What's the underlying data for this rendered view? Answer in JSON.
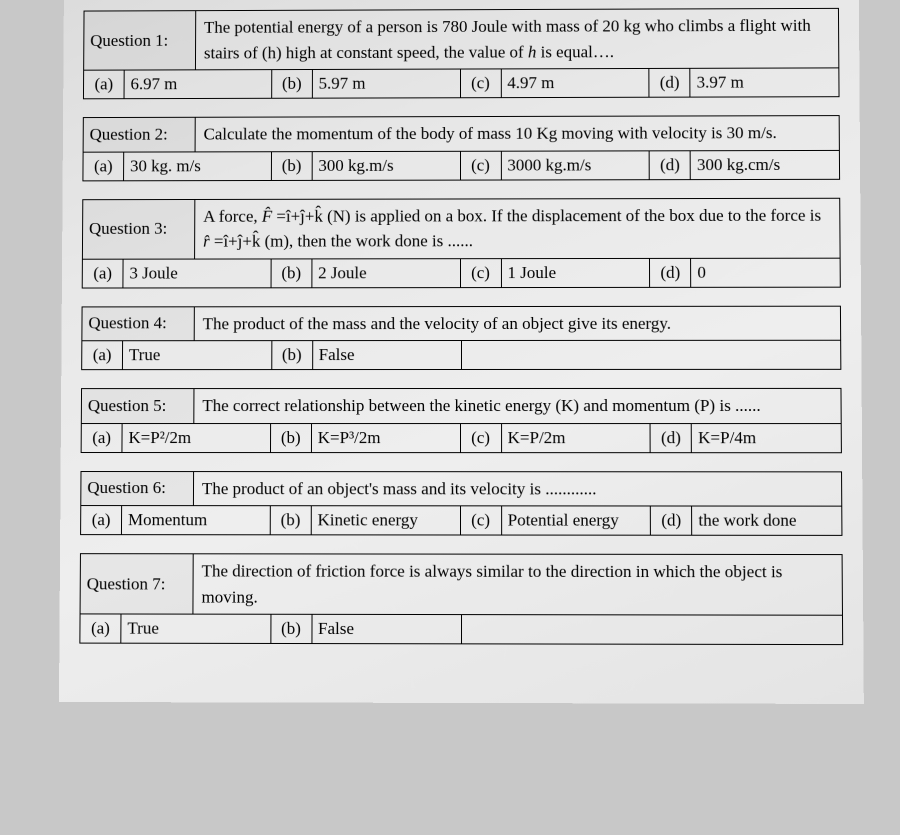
{
  "questions": [
    {
      "label": "Question 1:",
      "text_html": "The potential energy of a person is 780 Joule with mass of 20 kg who climbs a flight with stairs of (h) high at constant speed, the value of <i>h</i> is equal….",
      "opts": [
        "6.97 m",
        "5.97 m",
        "4.97 m",
        "3.97 m"
      ]
    },
    {
      "label": "Question 2:",
      "text_html": "Calculate the momentum of the body of mass 10 Kg moving with velocity is 30 m/s.",
      "opts": [
        "30 kg. m/s",
        "300 kg.m/s",
        "3000 kg.m/s",
        "300 kg.cm/s"
      ]
    },
    {
      "label": "Question 3:",
      "text_html": "A force, <i>F̂</i> =î+ĵ+k̂ (N) is applied on a box. If the displacement of the box due to the force is <i>r̂</i> =î+ĵ+k̂ (m), then the work done is ......",
      "opts": [
        "3 Joule",
        "2 Joule",
        "1 Joule",
        "0"
      ]
    },
    {
      "label": "Question 4:",
      "text_html": "The product of the mass and the velocity of an object give its energy.",
      "opts": [
        "True",
        "False"
      ],
      "two": true
    },
    {
      "label": "Question 5:",
      "text_html": "The correct relationship between the kinetic energy (K) and momentum (P) is ......",
      "opts": [
        "K=P²/2m",
        "K=P³/2m",
        "K=P/2m",
        "K=P/4m"
      ]
    },
    {
      "label": "Question 6:",
      "text_html": "The product of an object's mass and its velocity is ............",
      "opts": [
        "Momentum",
        "Kinetic energy",
        "Potential energy",
        "the work done"
      ]
    },
    {
      "label": "Question 7:",
      "text_html": "The direction of friction force is always similar to the direction in which the object is moving.",
      "opts": [
        "True",
        "False"
      ],
      "two": true
    }
  ],
  "letters": [
    "(a)",
    "(b)",
    "(c)",
    "(d)"
  ]
}
